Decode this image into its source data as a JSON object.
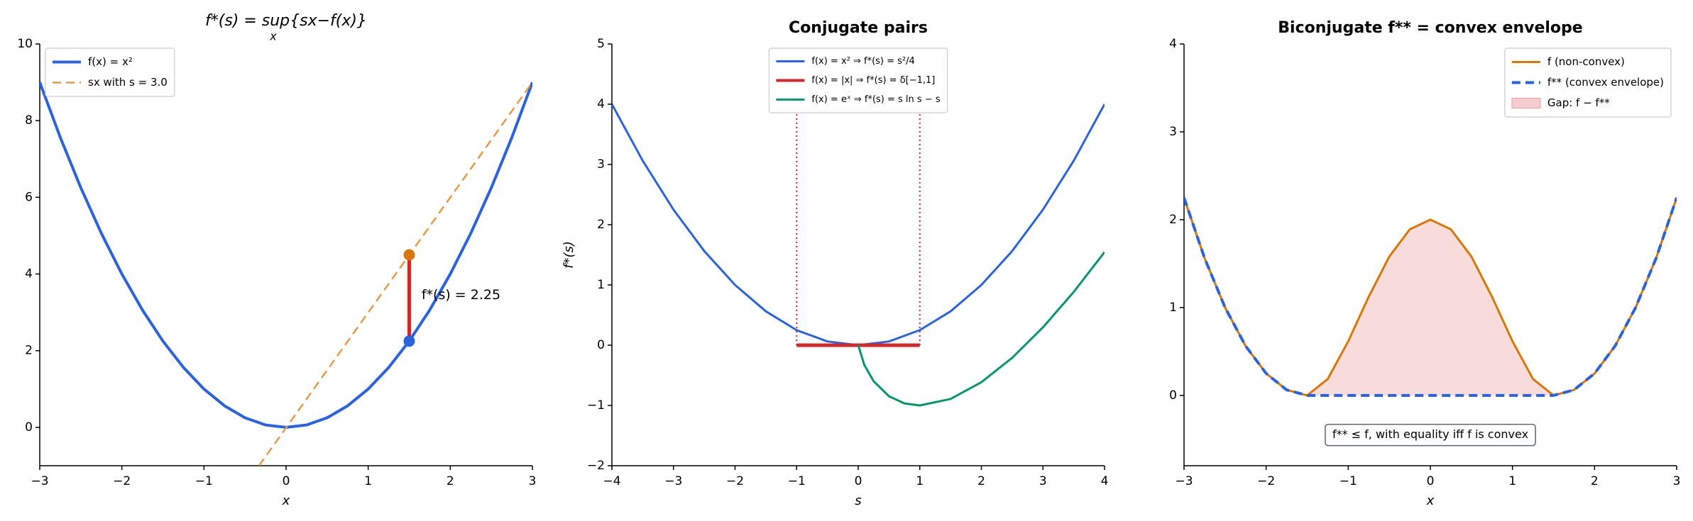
{
  "chart_data": [
    {
      "type": "line",
      "title": "f*(s) = sup{sx−f(x)}",
      "title_subscript": "x",
      "xlabel": "x",
      "xlim": [
        -3,
        3
      ],
      "ylim": [
        -1,
        10
      ],
      "xticks": [
        {
          "value": -3,
          "label": "−3"
        },
        {
          "value": -2,
          "label": "−2"
        },
        {
          "value": -1,
          "label": "−1"
        },
        0,
        1,
        2,
        3
      ],
      "yticks": [
        0,
        2,
        4,
        6,
        8,
        10
      ],
      "legend": "upper left",
      "annotation": "f*(s) = 2.25",
      "series": [
        {
          "name": "f(x) = x²",
          "color": "#2a62e0",
          "width": 4,
          "x": [
            -3,
            -2.75,
            -2.5,
            -2.25,
            -2,
            -1.75,
            -1.5,
            -1.25,
            -1,
            -0.75,
            -0.5,
            -0.25,
            0,
            0.25,
            0.5,
            0.75,
            1,
            1.25,
            1.5,
            1.75,
            2,
            2.25,
            2.5,
            2.75,
            3
          ],
          "values": [
            9,
            7.5625,
            6.25,
            5.0625,
            4,
            3.0625,
            2.25,
            1.5625,
            1,
            0.5625,
            0.25,
            0.0625,
            0,
            0.0625,
            0.25,
            0.5625,
            1,
            1.5625,
            2.25,
            3.0625,
            4,
            5.0625,
            6.25,
            7.5625,
            9
          ]
        },
        {
          "name": "sx with s = 3.0",
          "color": "#e49b47",
          "width": 2.5,
          "style": "dashed",
          "x": [
            -0.33,
            3
          ],
          "values": [
            -1,
            9
          ]
        },
        {
          "color": "#d62728",
          "width": 5,
          "x": [
            1.5,
            1.5
          ],
          "values": [
            2.25,
            4.5
          ]
        },
        {
          "color": "#d97706",
          "marker": true,
          "x": [
            1.5
          ],
          "values": [
            4.5
          ]
        },
        {
          "color": "#2a62e0",
          "marker": true,
          "x": [
            1.5
          ],
          "values": [
            2.25
          ]
        }
      ]
    },
    {
      "type": "line",
      "title": "Conjugate pairs",
      "xlabel": "s",
      "ylabel": "f*(s)",
      "xlim": [
        -4,
        4
      ],
      "ylim": [
        -2,
        5
      ],
      "xticks": [
        {
          "value": -4,
          "label": "−4"
        },
        {
          "value": -3,
          "label": "−3"
        },
        {
          "value": -2,
          "label": "−2"
        },
        {
          "value": -1,
          "label": "−1"
        },
        0,
        1,
        2,
        3,
        4
      ],
      "yticks": [
        {
          "value": -2,
          "label": "−2"
        },
        {
          "value": -1,
          "label": "−1"
        },
        0,
        1,
        2,
        3,
        4,
        5
      ],
      "legend": "upper center",
      "series": [
        {
          "name": "f(x) = x² ⇒ f*(s) = s²/4",
          "color": "#2a62e0",
          "width": 3,
          "x": [
            -4,
            -3.5,
            -3,
            -2.5,
            -2,
            -1.5,
            -1,
            -0.5,
            0,
            0.5,
            1,
            1.5,
            2,
            2.5,
            3,
            3.5,
            4
          ],
          "values": [
            4,
            3.0625,
            2.25,
            1.5625,
            1,
            0.5625,
            0.25,
            0.0625,
            0,
            0.0625,
            0.25,
            0.5625,
            1,
            1.5625,
            2.25,
            3.0625,
            4
          ]
        },
        {
          "name": "f(x) = |x| ⇒ f*(s) = δ[−1,1]",
          "color": "#d62728",
          "width": 5,
          "x": [
            -1,
            1
          ],
          "values": [
            0,
            0
          ]
        },
        {
          "color": "#d62728",
          "width": 2,
          "style": "dotted",
          "x": [
            -1,
            -1
          ],
          "values": [
            0,
            3.93
          ]
        },
        {
          "color": "#d62728",
          "width": 2,
          "style": "dotted",
          "x": [
            1,
            1
          ],
          "values": [
            0,
            3.93
          ]
        },
        {
          "name": "f(x) = eˣ ⇒ f*(s) = s ln s − s",
          "color": "#079669",
          "width": 3,
          "x": [
            0,
            0.1,
            0.25,
            0.5,
            0.75,
            1,
            1.5,
            2,
            2.5,
            3,
            3.5,
            4
          ],
          "values": [
            0,
            -0.33,
            -0.597,
            -0.847,
            -0.966,
            -1,
            -0.892,
            -0.614,
            -0.209,
            0.296,
            0.885,
            1.545
          ]
        }
      ]
    },
    {
      "type": "line",
      "title": "Biconjugate f** = convex envelope",
      "xlabel": "x",
      "xlim": [
        -3,
        3
      ],
      "ylim": [
        -0.8,
        4
      ],
      "xticks": [
        {
          "value": -3,
          "label": "−3"
        },
        {
          "value": -2,
          "label": "−2"
        },
        {
          "value": -1,
          "label": "−1"
        },
        0,
        1,
        2,
        3
      ],
      "yticks": [
        0,
        1,
        2,
        3,
        4
      ],
      "legend": "upper right",
      "annotation": "f** ≤ f, with equality iff f is convex",
      "fill": {
        "name": "Gap: f − f**",
        "color": "#f5cfcf",
        "between": [
          0,
          1
        ]
      },
      "series": [
        {
          "name": "f (non-convex)",
          "color": "#d97706",
          "width": 3,
          "x": [
            -3,
            -2.75,
            -2.5,
            -2.25,
            -2,
            -1.75,
            -1.5,
            -1.25,
            -1,
            -0.75,
            -0.5,
            -0.25,
            0,
            0.25,
            0.5,
            0.75,
            1,
            1.25,
            1.5,
            1.75,
            2,
            2.25,
            2.5,
            2.75,
            3
          ],
          "values": [
            2.25,
            1.5625,
            1,
            0.5625,
            0.25,
            0.0625,
            0,
            0.1867,
            0.6173,
            1.125,
            1.5802,
            1.8904,
            2,
            1.8904,
            1.5802,
            1.125,
            0.6173,
            0.1867,
            0,
            0.0625,
            0.25,
            0.5625,
            1,
            1.5625,
            2.25
          ]
        },
        {
          "name": "f** (convex envelope)",
          "color": "#2a62e0",
          "width": 4,
          "style": "dashed",
          "x": [
            -3,
            -2.75,
            -2.5,
            -2.25,
            -2,
            -1.75,
            -1.5,
            -1.25,
            -1,
            -0.75,
            -0.5,
            -0.25,
            0,
            0.25,
            0.5,
            0.75,
            1,
            1.25,
            1.5,
            1.75,
            2,
            2.25,
            2.5,
            2.75,
            3
          ],
          "values": [
            2.25,
            1.5625,
            1,
            0.5625,
            0.25,
            0.0625,
            0,
            0,
            0,
            0,
            0,
            0,
            0,
            0,
            0,
            0,
            0,
            0,
            0,
            0.0625,
            0.25,
            0.5625,
            1,
            1.5625,
            2.25
          ]
        }
      ]
    }
  ]
}
